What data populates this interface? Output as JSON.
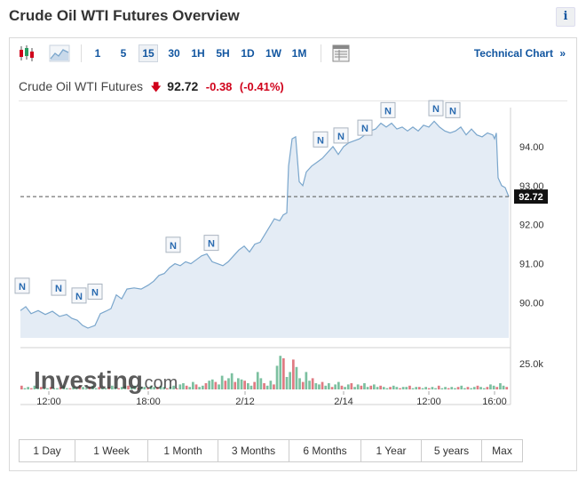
{
  "page": {
    "title": "Crude Oil WTI Futures Overview",
    "info_label": "i"
  },
  "toolbar": {
    "icons": [
      "candlestick-icon",
      "area-chart-icon",
      "table-icon"
    ],
    "intervals": [
      "1",
      "5",
      "15",
      "30",
      "1H",
      "5H",
      "1D",
      "1W",
      "1M"
    ],
    "active_interval": "15",
    "technical_chart_label": "Technical Chart",
    "technical_chart_chevron": "»"
  },
  "quote": {
    "name": "Crude Oil WTI Futures",
    "direction": "down",
    "price": "92.72",
    "change": "-0.38",
    "change_pct": "(-0.41%)",
    "down_color": "#d0021b"
  },
  "watermark": {
    "brand": "Investing",
    "suffix": ".com"
  },
  "chart_data": {
    "type": "area",
    "x_tick_labels": [
      "12:00",
      "18:00",
      "2/12",
      "2/14",
      "12:00",
      "16:00"
    ],
    "y_tick_labels": [
      "90.00",
      "91.00",
      "92.00",
      "93.00",
      "94.00"
    ],
    "ylim": [
      89.1,
      95.0
    ],
    "current_price_label": "92.72",
    "current_price": 92.72,
    "volume_tick_label": "25.0k",
    "news_marker_label": "N",
    "news_markers": [
      {
        "t": 2,
        "y": 90.15
      },
      {
        "t": 43,
        "y": 90.1
      },
      {
        "t": 66,
        "y": 89.9
      },
      {
        "t": 84,
        "y": 90.0
      },
      {
        "t": 172,
        "y": 91.2
      },
      {
        "t": 215,
        "y": 91.25
      },
      {
        "t": 338,
        "y": 93.9
      },
      {
        "t": 361,
        "y": 94.0
      },
      {
        "t": 388,
        "y": 94.2
      },
      {
        "t": 414,
        "y": 94.65
      },
      {
        "t": 468,
        "y": 94.7
      },
      {
        "t": 487,
        "y": 94.65
      }
    ],
    "series": [
      {
        "values": [
          [
            0,
            89.8
          ],
          [
            6,
            89.9
          ],
          [
            12,
            89.72
          ],
          [
            20,
            89.8
          ],
          [
            28,
            89.7
          ],
          [
            36,
            89.78
          ],
          [
            44,
            89.65
          ],
          [
            52,
            89.7
          ],
          [
            58,
            89.6
          ],
          [
            64,
            89.55
          ],
          [
            70,
            89.42
          ],
          [
            76,
            89.35
          ],
          [
            84,
            89.42
          ],
          [
            90,
            89.72
          ],
          [
            96,
            89.78
          ],
          [
            102,
            89.85
          ],
          [
            108,
            90.2
          ],
          [
            114,
            90.1
          ],
          [
            120,
            90.35
          ],
          [
            128,
            90.38
          ],
          [
            136,
            90.35
          ],
          [
            144,
            90.45
          ],
          [
            150,
            90.55
          ],
          [
            156,
            90.7
          ],
          [
            162,
            90.75
          ],
          [
            168,
            90.9
          ],
          [
            174,
            91.0
          ],
          [
            180,
            90.95
          ],
          [
            186,
            91.05
          ],
          [
            192,
            91.0
          ],
          [
            198,
            91.1
          ],
          [
            204,
            91.2
          ],
          [
            210,
            91.25
          ],
          [
            216,
            91.05
          ],
          [
            222,
            91.0
          ],
          [
            228,
            90.95
          ],
          [
            234,
            91.05
          ],
          [
            240,
            91.2
          ],
          [
            246,
            91.35
          ],
          [
            252,
            91.45
          ],
          [
            258,
            91.3
          ],
          [
            264,
            91.5
          ],
          [
            270,
            91.55
          ],
          [
            278,
            91.85
          ],
          [
            286,
            92.15
          ],
          [
            292,
            92.1
          ],
          [
            296,
            92.25
          ],
          [
            300,
            92.3
          ],
          [
            302,
            93.5
          ],
          [
            306,
            94.2
          ],
          [
            310,
            94.25
          ],
          [
            314,
            93.1
          ],
          [
            318,
            93.0
          ],
          [
            322,
            93.35
          ],
          [
            328,
            93.5
          ],
          [
            334,
            93.6
          ],
          [
            340,
            93.7
          ],
          [
            346,
            93.85
          ],
          [
            352,
            94.0
          ],
          [
            358,
            93.8
          ],
          [
            364,
            94.0
          ],
          [
            370,
            94.1
          ],
          [
            376,
            94.15
          ],
          [
            382,
            94.2
          ],
          [
            388,
            94.3
          ],
          [
            394,
            94.4
          ],
          [
            400,
            94.45
          ],
          [
            406,
            94.6
          ],
          [
            412,
            94.5
          ],
          [
            418,
            94.6
          ],
          [
            424,
            94.45
          ],
          [
            430,
            94.5
          ],
          [
            436,
            94.4
          ],
          [
            442,
            94.5
          ],
          [
            448,
            94.4
          ],
          [
            454,
            94.55
          ],
          [
            460,
            94.5
          ],
          [
            466,
            94.65
          ],
          [
            472,
            94.5
          ],
          [
            478,
            94.4
          ],
          [
            484,
            94.35
          ],
          [
            490,
            94.4
          ],
          [
            496,
            94.5
          ],
          [
            502,
            94.3
          ],
          [
            508,
            94.45
          ],
          [
            514,
            94.3
          ],
          [
            520,
            94.25
          ],
          [
            526,
            94.35
          ],
          [
            532,
            94.3
          ],
          [
            534,
            94.2
          ],
          [
            536,
            94.35
          ],
          [
            538,
            93.2
          ],
          [
            542,
            93.0
          ],
          [
            546,
            92.95
          ],
          [
            550,
            92.72
          ]
        ]
      }
    ],
    "volume_values": [
      3,
      1,
      2,
      1,
      3,
      1,
      2,
      1,
      1,
      2,
      1,
      1,
      2,
      3,
      1,
      1,
      2,
      1,
      3,
      2,
      1,
      2,
      3,
      1,
      2,
      1,
      1,
      2,
      3,
      2,
      1,
      2,
      3,
      3,
      2,
      3,
      1,
      2,
      2,
      1,
      3,
      2,
      2,
      3,
      2,
      1,
      2,
      3,
      1,
      4,
      5,
      3,
      2,
      6,
      4,
      2,
      3,
      5,
      7,
      8,
      6,
      4,
      11,
      7,
      9,
      13,
      6,
      9,
      8,
      7,
      5,
      3,
      6,
      14,
      9,
      5,
      3,
      7,
      4,
      19,
      27,
      25,
      10,
      14,
      24,
      18,
      9,
      6,
      14,
      7,
      9,
      5,
      4,
      6,
      3,
      5,
      2,
      4,
      6,
      3,
      2,
      4,
      5,
      2,
      4,
      3,
      5,
      2,
      3,
      4,
      2,
      3,
      2,
      1,
      2,
      3,
      2,
      1,
      2,
      2,
      3,
      1,
      2,
      2,
      1,
      2,
      1,
      2,
      1,
      3,
      1,
      2,
      1,
      2,
      1,
      2,
      3,
      1,
      2,
      1,
      2,
      3,
      2,
      1,
      2,
      4,
      3,
      2,
      5,
      3,
      2
    ],
    "volume_max": 30,
    "volume_colors": {
      "up": "#7cc0a0",
      "down": "#e07b83"
    },
    "colors": {
      "line": "#7aa6cc",
      "fill": "#e4ecf5",
      "price_tag": "#111111"
    }
  },
  "range_buttons": [
    "1 Day",
    "1 Week",
    "1 Month",
    "3 Months",
    "6 Months",
    "1 Year",
    "5 years",
    "Max"
  ]
}
